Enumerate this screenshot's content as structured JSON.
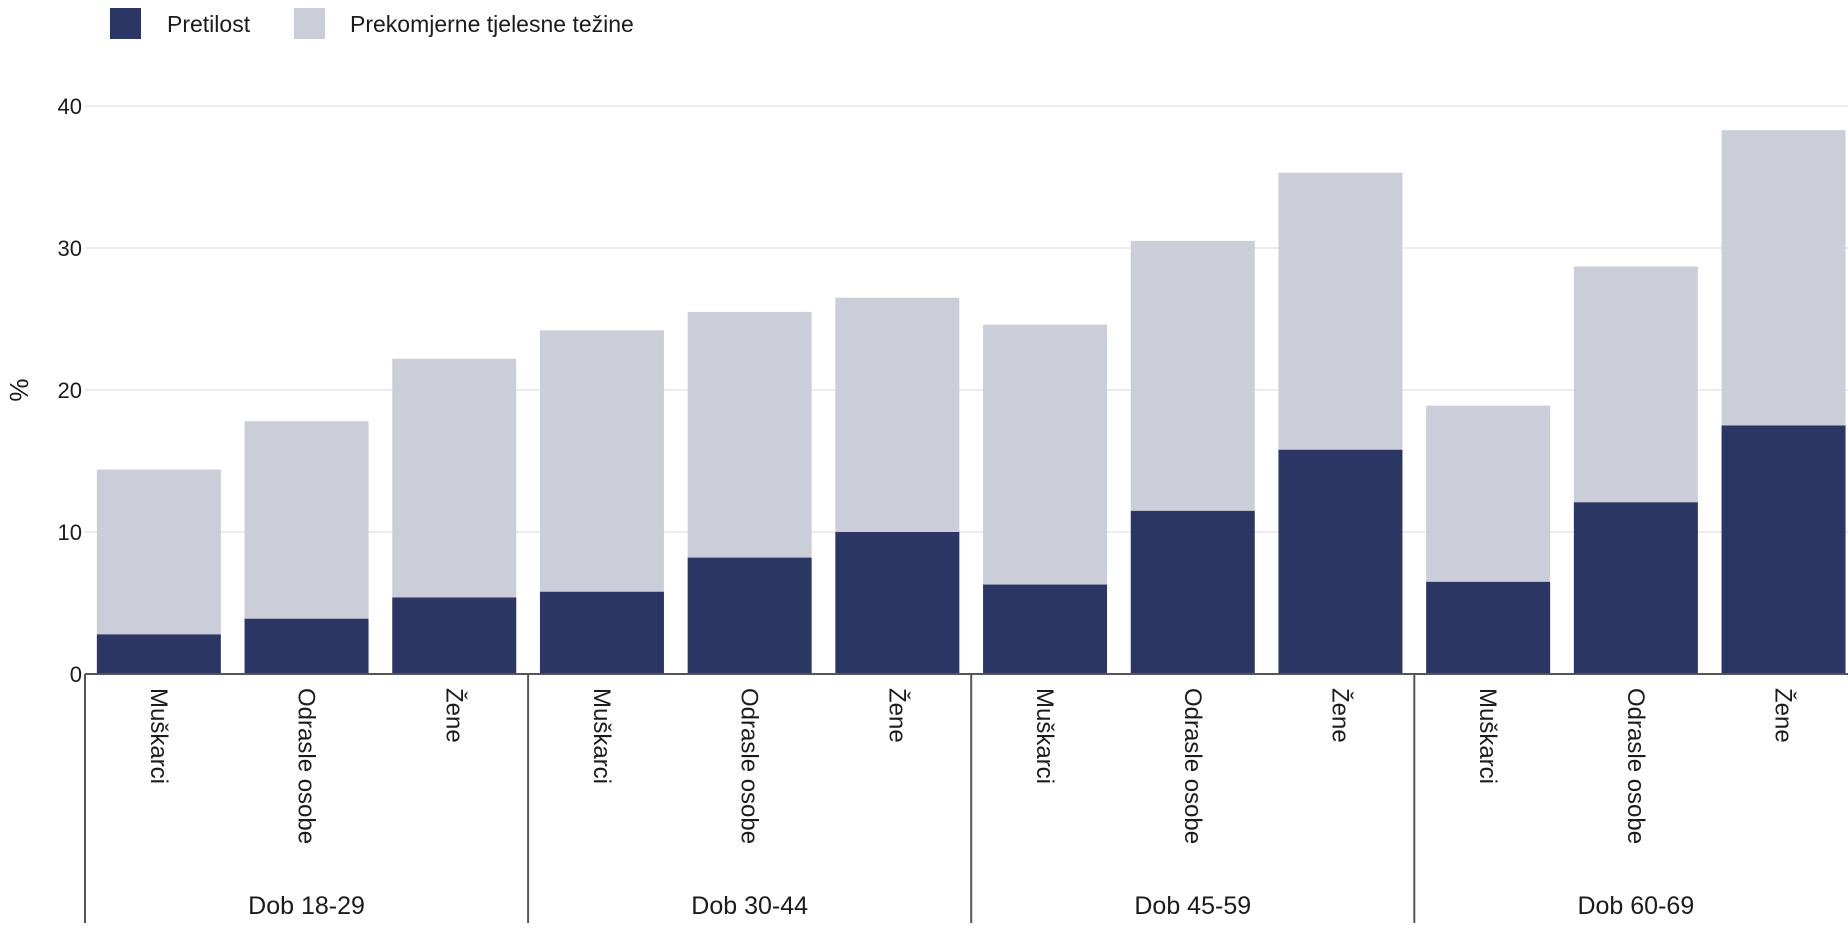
{
  "legend": {
    "items": [
      {
        "label": "Pretilost",
        "color": "#2b3664"
      },
      {
        "label": "Prekomjerne tjelesne težine",
        "color": "#cbcdd8"
      }
    ]
  },
  "chart_data": {
    "type": "bar",
    "stacked": true,
    "ylabel": "%",
    "xlabel": "",
    "ylim": [
      0,
      40
    ],
    "yticks": [
      0,
      10,
      20,
      30,
      40
    ],
    "grid": true,
    "legend_position": "top-left",
    "groups": [
      {
        "label": "Dob 18-29",
        "categories": [
          "Muškarci",
          "Odrasle osobe",
          "Žene"
        ]
      },
      {
        "label": "Dob 30-44",
        "categories": [
          "Muškarci",
          "Odrasle osobe",
          "Žene"
        ]
      },
      {
        "label": "Dob 45-59",
        "categories": [
          "Muškarci",
          "Odrasle osobe",
          "Žene"
        ]
      },
      {
        "label": "Dob 60-69",
        "categories": [
          "Muškarci",
          "Odrasle osobe",
          "Žene"
        ]
      }
    ],
    "series": [
      {
        "name": "Pretilost",
        "color": "#2b3664",
        "values": [
          2.8,
          3.9,
          5.4,
          5.8,
          8.2,
          10.0,
          6.3,
          11.5,
          15.8,
          6.5,
          12.1,
          17.5
        ]
      },
      {
        "name": "Prekomjerne tjelesne težine",
        "color": "#cbcdd8",
        "values": [
          11.6,
          13.9,
          16.8,
          18.4,
          17.3,
          16.5,
          18.3,
          19.0,
          19.5,
          12.4,
          16.6,
          20.8
        ]
      }
    ]
  }
}
